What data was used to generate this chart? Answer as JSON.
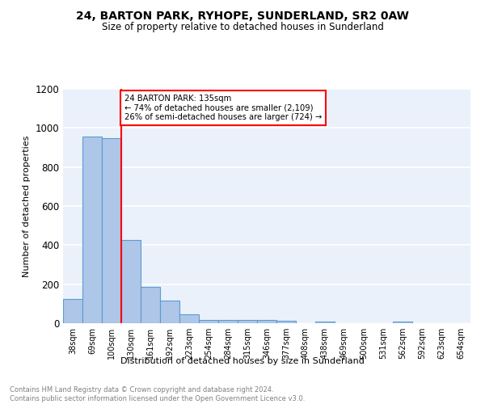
{
  "title1": "24, BARTON PARK, RYHOPE, SUNDERLAND, SR2 0AW",
  "title2": "Size of property relative to detached houses in Sunderland",
  "xlabel": "Distribution of detached houses by size in Sunderland",
  "ylabel": "Number of detached properties",
  "footnote1": "Contains HM Land Registry data © Crown copyright and database right 2024.",
  "footnote2": "Contains public sector information licensed under the Open Government Licence v3.0.",
  "bar_labels": [
    "38sqm",
    "69sqm",
    "100sqm",
    "130sqm",
    "161sqm",
    "192sqm",
    "223sqm",
    "254sqm",
    "284sqm",
    "315sqm",
    "346sqm",
    "377sqm",
    "408sqm",
    "438sqm",
    "469sqm",
    "500sqm",
    "531sqm",
    "562sqm",
    "592sqm",
    "623sqm",
    "654sqm"
  ],
  "bar_values": [
    125,
    955,
    948,
    425,
    185,
    115,
    45,
    18,
    15,
    15,
    16,
    12,
    0,
    10,
    0,
    0,
    0,
    10,
    0,
    0,
    0
  ],
  "bar_color": "#aec6e8",
  "bar_edge_color": "#5b9bd5",
  "background_color": "#eaf1fb",
  "grid_color": "#ffffff",
  "red_line_index": 3,
  "annotation_title": "24 BARTON PARK: 135sqm",
  "annotation_line1": "← 74% of detached houses are smaller (2,109)",
  "annotation_line2": "26% of semi-detached houses are larger (724) →",
  "ylim": [
    0,
    1200
  ],
  "yticks": [
    0,
    200,
    400,
    600,
    800,
    1000,
    1200
  ]
}
